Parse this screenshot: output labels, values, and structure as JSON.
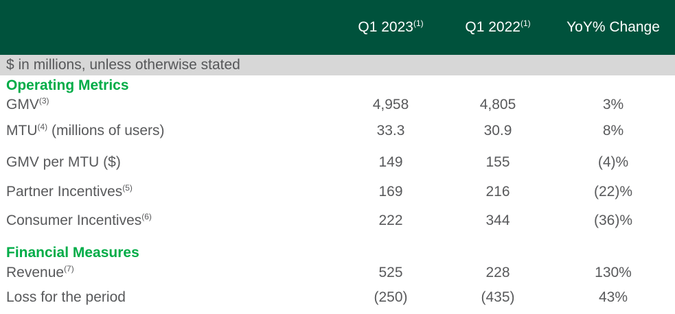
{
  "colors": {
    "header_bg": "#00523C",
    "header_text": "#FFFFFF",
    "accent_green": "#00AC47",
    "note_band_bg": "#D7D7D7",
    "body_text": "#58595B"
  },
  "table": {
    "note": "$ in millions, unless otherwise stated",
    "headers": [
      {
        "label": "Q1 2023",
        "sup": "(1)"
      },
      {
        "label": "Q1 2022",
        "sup": "(1)"
      },
      {
        "label": "YoY% Change",
        "sup": ""
      }
    ],
    "sections": [
      {
        "title": "Operating Metrics",
        "rows": [
          {
            "label": "GMV",
            "sup": "(3)",
            "suffix": "",
            "v2023": "4,958",
            "v2022": "4,805",
            "yoy": "3%"
          },
          {
            "label": "MTU",
            "sup": "(4)",
            "suffix": " (millions of users)",
            "v2023": "33.3",
            "v2022": "30.9",
            "yoy": "8%"
          },
          {
            "label": "GMV per MTU ($)",
            "sup": "",
            "suffix": "",
            "v2023": "149",
            "v2022": "155",
            "yoy": "(4)%"
          },
          {
            "label": "Partner Incentives",
            "sup": "(5)",
            "suffix": "",
            "v2023": "169",
            "v2022": "216",
            "yoy": "(22)%"
          },
          {
            "label": "Consumer Incentives",
            "sup": "(6)",
            "suffix": "",
            "v2023": "222",
            "v2022": "344",
            "yoy": "(36)%"
          }
        ]
      },
      {
        "title": "Financial Measures",
        "rows": [
          {
            "label": "Revenue",
            "sup": "(7)",
            "suffix": "",
            "v2023": "525",
            "v2022": "228",
            "yoy": "130%"
          },
          {
            "label": "Loss for the period",
            "sup": "",
            "suffix": "",
            "v2023": "(250)",
            "v2022": "(435)",
            "yoy": "43%"
          }
        ]
      }
    ]
  },
  "chart_data": {
    "type": "table",
    "unit_note": "$ in millions, unless otherwise stated",
    "columns": [
      "Metric",
      "Q1 2023(1)",
      "Q1 2022(1)",
      "YoY% Change"
    ],
    "rows": [
      {
        "section": "Operating Metrics",
        "metric": "GMV(3)",
        "q1_2023": 4958,
        "q1_2022": 4805,
        "yoy_change": "3%"
      },
      {
        "section": "Operating Metrics",
        "metric": "MTU(4) (millions of users)",
        "q1_2023": 33.3,
        "q1_2022": 30.9,
        "yoy_change": "8%"
      },
      {
        "section": "Operating Metrics",
        "metric": "GMV per MTU ($)",
        "q1_2023": 149,
        "q1_2022": 155,
        "yoy_change": "(4)%"
      },
      {
        "section": "Operating Metrics",
        "metric": "Partner Incentives(5)",
        "q1_2023": 169,
        "q1_2022": 216,
        "yoy_change": "(22)%"
      },
      {
        "section": "Operating Metrics",
        "metric": "Consumer Incentives(6)",
        "q1_2023": 222,
        "q1_2022": 344,
        "yoy_change": "(36)%"
      },
      {
        "section": "Financial Measures",
        "metric": "Revenue(7)",
        "q1_2023": 525,
        "q1_2022": 228,
        "yoy_change": "130%"
      },
      {
        "section": "Financial Measures",
        "metric": "Loss for the period",
        "q1_2023": -250,
        "q1_2022": -435,
        "yoy_change": "43%"
      }
    ]
  }
}
